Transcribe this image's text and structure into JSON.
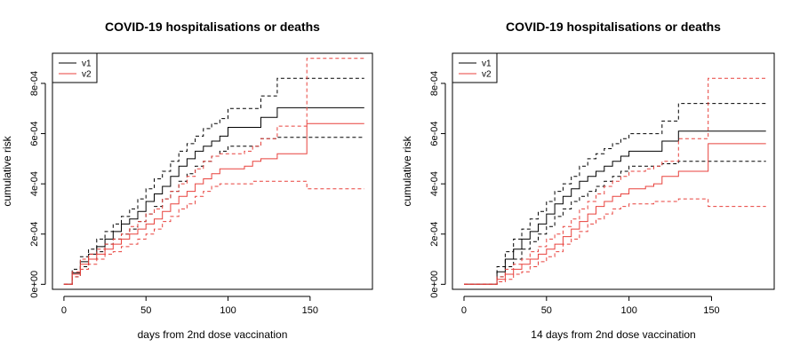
{
  "chart_data": [
    {
      "type": "line",
      "title": "COVID-19 hospitalisations or deaths",
      "xlabel": "days from 2nd dose vaccination",
      "ylabel": "cumulative risk",
      "xlim": [
        -7,
        188
      ],
      "ylim": [
        -2e-05,
        0.00092
      ],
      "xticks": [
        0,
        50,
        100,
        150
      ],
      "xtick_labels": [
        "0",
        "50",
        "100",
        "150"
      ],
      "yticks": [
        0,
        0.0002,
        0.0004,
        0.0006,
        0.0008
      ],
      "ytick_labels": [
        "0e+00",
        "2e-04",
        "4e-04",
        "6e-04",
        "8e-04"
      ],
      "legend": {
        "position": "top-left",
        "entries": [
          "v1",
          "v2"
        ]
      },
      "series": [
        {
          "name": "v1",
          "color": "#000000",
          "x": [
            0,
            5,
            10,
            15,
            20,
            25,
            30,
            35,
            40,
            45,
            50,
            55,
            60,
            65,
            70,
            75,
            80,
            85,
            90,
            95,
            100,
            110,
            120,
            125,
            130,
            150,
            183
          ],
          "y": [
            0,
            4.5e-05,
            9e-05,
            0.00012,
            0.00015,
            0.00018,
            0.00021,
            0.00024,
            0.00026,
            0.00029,
            0.00033,
            0.00036,
            0.00039,
            0.00043,
            0.00047,
            0.0005,
            0.00053,
            0.00055,
            0.00057,
            0.00059,
            0.000625,
            0.000625,
            0.000665,
            0.000665,
            0.000703,
            0.000703,
            0.000703
          ],
          "lower": [
            0,
            3e-05,
            7e-05,
            0.0001,
            0.00013,
            0.00016,
            0.00018,
            0.0002,
            0.00022,
            0.00025,
            0.00028,
            0.00031,
            0.00034,
            0.00037,
            0.00041,
            0.00044,
            0.00047,
            0.00049,
            0.00051,
            0.00053,
            0.00055,
            0.00055,
            0.00058,
            0.00058,
            0.000585,
            0.000585,
            0.000585
          ],
          "upper": [
            0,
            6e-05,
            0.00011,
            0.00014,
            0.00018,
            0.00021,
            0.00024,
            0.00027,
            0.0003,
            0.00034,
            0.00038,
            0.00042,
            0.00045,
            0.00049,
            0.00053,
            0.00056,
            0.00059,
            0.00062,
            0.00064,
            0.00066,
            0.0007,
            0.0007,
            0.00075,
            0.00075,
            0.00082,
            0.00082,
            0.00082
          ]
        },
        {
          "name": "v2",
          "color": "#e8413c",
          "x": [
            0,
            5,
            10,
            15,
            20,
            25,
            30,
            35,
            40,
            45,
            50,
            55,
            60,
            65,
            70,
            75,
            80,
            85,
            90,
            95,
            100,
            110,
            115,
            120,
            130,
            148,
            183
          ],
          "y": [
            0,
            4e-05,
            8e-05,
            0.0001,
            0.00012,
            0.00014,
            0.00016,
            0.00018,
            0.0002,
            0.00022,
            0.00024,
            0.00026,
            0.00029,
            0.00032,
            0.00035,
            0.00037,
            0.0004,
            0.00042,
            0.00044,
            0.00046,
            0.00046,
            0.00047,
            0.00049,
            0.0005,
            0.00052,
            0.00064,
            0.00064
          ],
          "lower": [
            0,
            3e-05,
            6e-05,
            8e-05,
            0.0001,
            0.00012,
            0.00013,
            0.00015,
            0.00016,
            0.00018,
            0.0002,
            0.00022,
            0.00025,
            0.00027,
            0.0003,
            0.00032,
            0.00035,
            0.00037,
            0.00039,
            0.0004,
            0.0004,
            0.0004,
            0.00041,
            0.00041,
            0.00041,
            0.00038,
            0.00038
          ],
          "upper": [
            0,
            5e-05,
            0.0001,
            0.00012,
            0.00014,
            0.00016,
            0.00018,
            0.0002,
            0.00023,
            0.00025,
            0.00028,
            0.0003,
            0.00034,
            0.00037,
            0.0004,
            0.00043,
            0.00046,
            0.00049,
            0.00051,
            0.00052,
            0.00052,
            0.00053,
            0.00055,
            0.00058,
            0.00063,
            0.0009,
            0.0009
          ]
        }
      ]
    },
    {
      "type": "line",
      "title": "COVID-19 hospitalisations or deaths",
      "xlabel": "14 days from 2nd dose vaccination",
      "ylabel": "cumulative risk",
      "xlim": [
        -7,
        188
      ],
      "ylim": [
        -2e-05,
        0.00092
      ],
      "xticks": [
        0,
        50,
        100,
        150
      ],
      "xtick_labels": [
        "0",
        "50",
        "100",
        "150"
      ],
      "yticks": [
        0,
        0.0002,
        0.0004,
        0.0006,
        0.0008
      ],
      "ytick_labels": [
        "0e+00",
        "2e-04",
        "4e-04",
        "6e-04",
        "8e-04"
      ],
      "legend": {
        "position": "top-left",
        "entries": [
          "v1",
          "v2"
        ]
      },
      "series": [
        {
          "name": "v1",
          "color": "#000000",
          "x": [
            0,
            14,
            20,
            25,
            30,
            35,
            40,
            45,
            50,
            55,
            60,
            65,
            70,
            75,
            80,
            85,
            90,
            95,
            100,
            110,
            120,
            125,
            130,
            150,
            183
          ],
          "y": [
            0,
            0,
            5e-05,
            0.0001,
            0.00014,
            0.00018,
            0.00021,
            0.00024,
            0.00028,
            0.00032,
            0.00035,
            0.00038,
            0.00041,
            0.00043,
            0.00045,
            0.00047,
            0.00049,
            0.00051,
            0.00053,
            0.00053,
            0.00057,
            0.00057,
            0.00061,
            0.00061,
            0.00061
          ],
          "lower": [
            0,
            0,
            3e-05,
            7e-05,
            0.0001,
            0.00014,
            0.00017,
            0.0002,
            0.00023,
            0.00027,
            0.0003,
            0.00033,
            0.00035,
            0.00037,
            0.00039,
            0.00041,
            0.00043,
            0.00045,
            0.00047,
            0.00047,
            0.00048,
            0.00048,
            0.00049,
            0.00049,
            0.00049
          ],
          "upper": [
            0,
            0,
            7e-05,
            0.00013,
            0.00018,
            0.00022,
            0.00026,
            0.00029,
            0.00033,
            0.00037,
            0.0004,
            0.00043,
            0.00047,
            0.0005,
            0.00052,
            0.00054,
            0.00056,
            0.00058,
            0.0006,
            0.0006,
            0.00065,
            0.00065,
            0.00072,
            0.00072,
            0.00072
          ]
        },
        {
          "name": "v2",
          "color": "#e8413c",
          "x": [
            0,
            15,
            20,
            25,
            30,
            35,
            40,
            45,
            50,
            55,
            60,
            65,
            70,
            75,
            80,
            85,
            90,
            95,
            100,
            110,
            115,
            120,
            130,
            148,
            183
          ],
          "y": [
            0,
            0,
            2e-05,
            4e-05,
            6e-05,
            8e-05,
            0.0001,
            0.00012,
            0.00014,
            0.00016,
            0.00019,
            0.00022,
            0.00025,
            0.00028,
            0.00031,
            0.00033,
            0.00035,
            0.00036,
            0.00038,
            0.00039,
            0.0004,
            0.00043,
            0.00045,
            0.00056,
            0.00056
          ],
          "lower": [
            0,
            0,
            1e-05,
            2e-05,
            4e-05,
            5e-05,
            7e-05,
            9e-05,
            0.00011,
            0.00013,
            0.00016,
            0.00018,
            0.00021,
            0.00024,
            0.00026,
            0.00028,
            0.0003,
            0.00031,
            0.00032,
            0.00032,
            0.00033,
            0.00033,
            0.00034,
            0.00031,
            0.00031
          ],
          "upper": [
            0,
            0,
            3e-05,
            6e-05,
            8e-05,
            0.0001,
            0.00013,
            0.00015,
            0.00018,
            0.0002,
            0.00023,
            0.00026,
            0.0003,
            0.00033,
            0.00036,
            0.00039,
            0.00041,
            0.00043,
            0.00045,
            0.00046,
            0.00047,
            0.00049,
            0.00058,
            0.00082,
            0.00082
          ]
        }
      ]
    }
  ]
}
